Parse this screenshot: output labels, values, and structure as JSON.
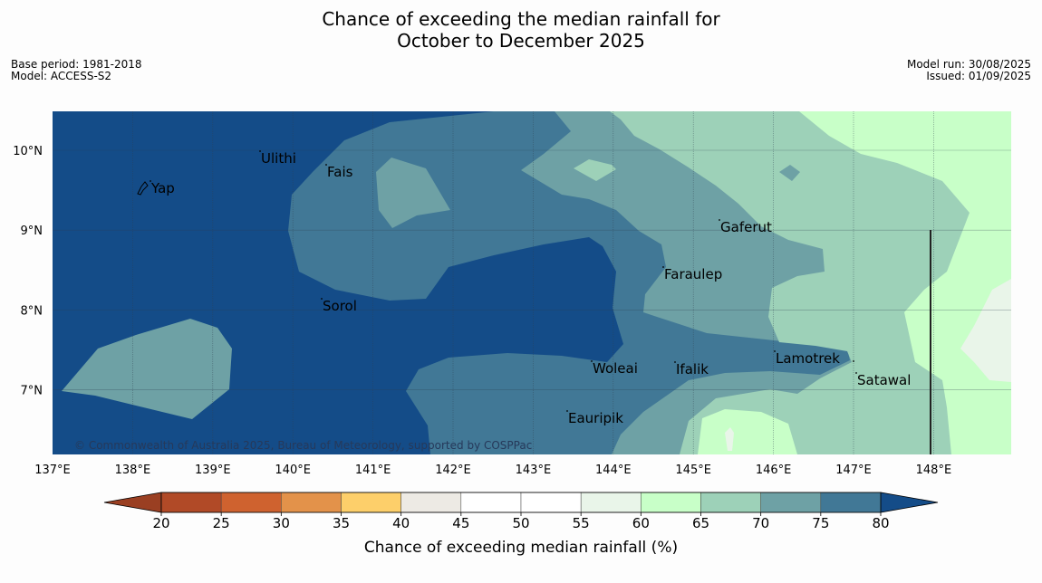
{
  "header": {
    "title_line1": "Chance of exceeding the median rainfall for",
    "title_line2": "October to December 2025"
  },
  "info_left": {
    "base_period": "Base period: 1981-2018",
    "model": "Model: ACCESS-S2"
  },
  "info_right": {
    "model_run": "Model run: 30/08/2025",
    "issued": "Issued: 01/09/2025"
  },
  "map": {
    "lon_labels": [
      "137°E",
      "138°E",
      "139°E",
      "140°E",
      "141°E",
      "142°E",
      "143°E",
      "144°E",
      "145°E",
      "146°E",
      "147°E",
      "148°E"
    ],
    "lat_labels": [
      "10°N",
      "9°N",
      "8°N",
      "7°N"
    ],
    "places": [
      {
        "name": "Ulithi"
      },
      {
        "name": "Fais"
      },
      {
        "name": "Yap"
      },
      {
        "name": "Gaferut"
      },
      {
        "name": "Faraulep"
      },
      {
        "name": "Sorol"
      },
      {
        "name": "Lamotrek"
      },
      {
        "name": "Woleai"
      },
      {
        "name": "Ifalik"
      },
      {
        "name": "Satawal"
      },
      {
        "name": "Eauripik"
      }
    ],
    "copyright": "© Commonwealth of Australia 2025, Bureau of Meteorology, supported by COSPPac"
  },
  "colorbar": {
    "ticks": [
      "20",
      "25",
      "30",
      "35",
      "40",
      "45",
      "50",
      "55",
      "60",
      "65",
      "70",
      "75",
      "80"
    ],
    "colors": [
      "#b14a27",
      "#cf622f",
      "#e3924a",
      "#fdcf6a",
      "#edeae4",
      "#ffffff",
      "#ffffff",
      "#e9f5e9",
      "#c8ffc8",
      "#9dd1b8",
      "#6ea1a5",
      "#417896"
    ],
    "under_color": "#9a3f22",
    "over_color": "#144c88",
    "label": "Chance of exceeding median rainfall (%)"
  }
}
